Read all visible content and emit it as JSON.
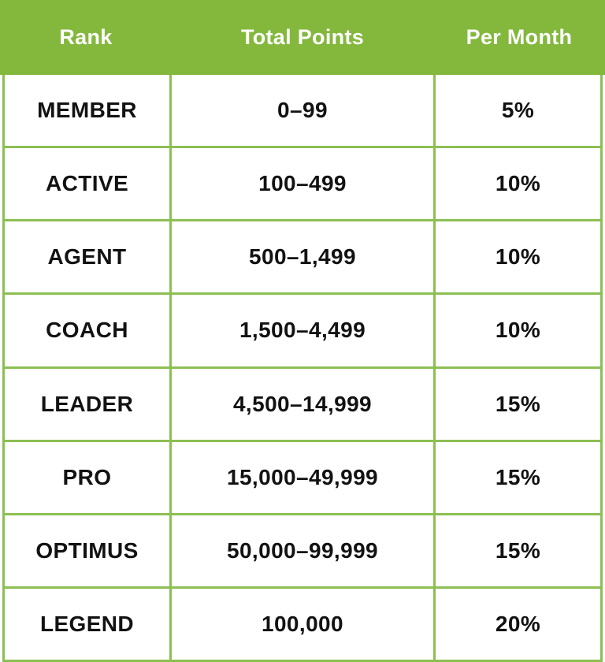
{
  "colors": {
    "header_background": "#83B83D",
    "grid_line_green": "#8CBF52",
    "header_text": "#FFFFFF",
    "body_text": "#121212"
  },
  "chart_data": {
    "type": "table",
    "title": "",
    "columns": [
      "Rank",
      "Total Points",
      "Per Month"
    ],
    "rows": [
      [
        "MEMBER",
        "0–99",
        "5%"
      ],
      [
        "ACTIVE",
        "100–499",
        "10%"
      ],
      [
        "AGENT",
        "500–1,499",
        "10%"
      ],
      [
        "COACH",
        "1,500–4,499",
        "10%"
      ],
      [
        "LEADER",
        "4,500–14,999",
        "15%"
      ],
      [
        "PRO",
        "15,000–49,999",
        "15%"
      ],
      [
        "OPTIMUS",
        "50,000–99,999",
        "15%"
      ],
      [
        "LEGEND",
        "100,000",
        "20%"
      ]
    ]
  }
}
